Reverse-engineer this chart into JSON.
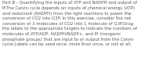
{
  "text": "Part B - Quantifying the inputs of ATP and NADPH and output of\nPiThe Calvin cycle depends on inputs of chemical energy (ATP)\nand reductant (NADPH) from the light reactions to power the\nconversion of CO2 into G3P. In this exercise, consider the net\nconversion of 3 molecules of CO2 into 1 molecule of G3P.Drag\nthe labels to the appropriate targets to indicate the numbers of\nmolecules of ATP/ADP, NADPH/NADP+, and Pi (inorganic\nphosphate groups) that are input to or output from the Calvin\ncycle.Labels can be used once, more than once, or not at all.",
  "font_size": 3.9,
  "text_color": "#5a5a5a",
  "bg_color": "#ffffff",
  "figsize": [
    2.13,
    0.88
  ],
  "dpi": 100
}
